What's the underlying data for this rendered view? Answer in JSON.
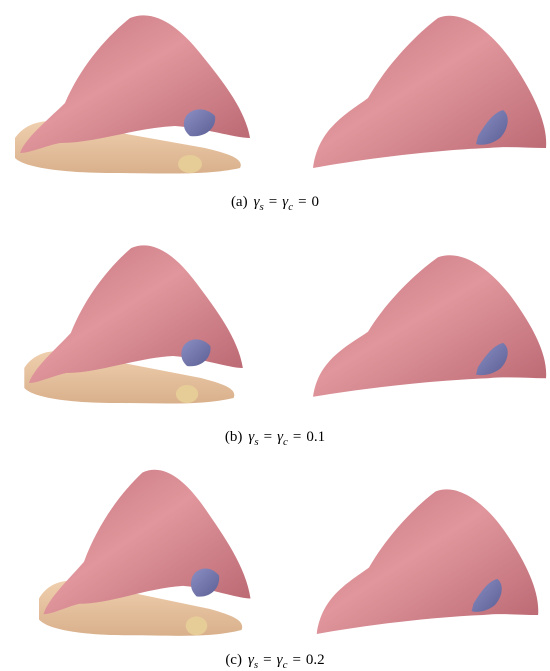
{
  "panels": [
    {
      "caption": {
        "label": "(a)",
        "terms": [
          {
            "symbol": "γ",
            "subscript": "s"
          },
          {
            "symbol": "γ",
            "subscript": "c"
          }
        ],
        "relation": "=",
        "value": "0"
      }
    },
    {
      "caption": {
        "label": "(b)",
        "terms": [
          {
            "symbol": "γ",
            "subscript": "s"
          },
          {
            "symbol": "γ",
            "subscript": "c"
          }
        ],
        "relation": "=",
        "value": "0.1"
      }
    },
    {
      "caption": {
        "label": "(c)",
        "terms": [
          {
            "symbol": "γ",
            "subscript": "s"
          },
          {
            "symbol": "γ",
            "subscript": "c"
          }
        ],
        "relation": "=",
        "value": "0.2"
      }
    }
  ]
}
